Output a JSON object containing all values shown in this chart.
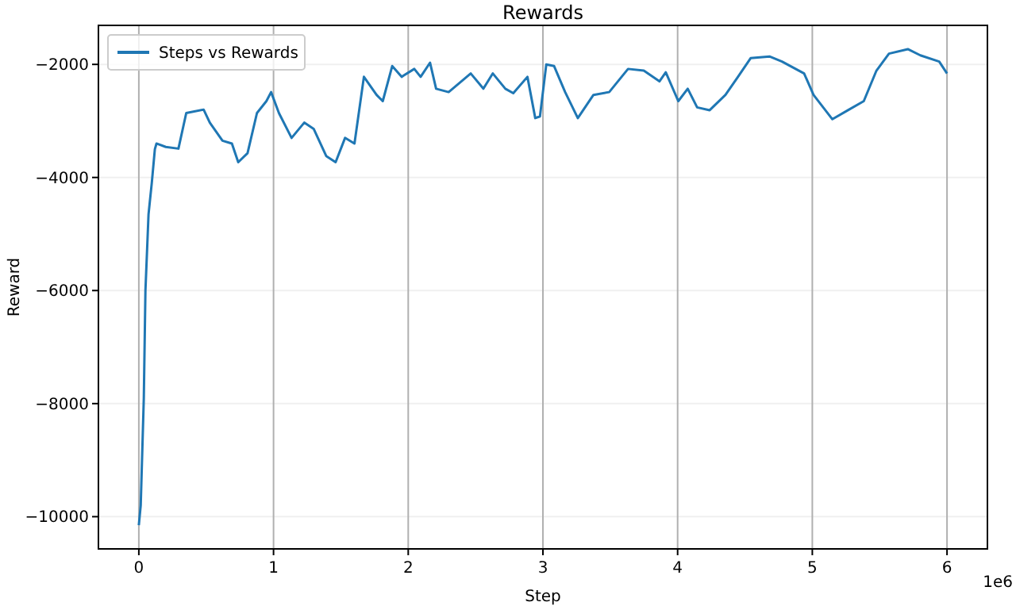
{
  "chart_data": {
    "type": "line",
    "title": "Rewards",
    "xlabel": "Step",
    "ylabel": "Reward",
    "annotations": [
      "1e6"
    ],
    "xlim": [
      -0.3,
      6.3
    ],
    "ylim": [
      -10570,
      -1310
    ],
    "xticks": [
      0,
      1,
      2,
      3,
      4,
      5,
      6
    ],
    "yticks": [
      {
        "value": -10000,
        "label": "−10000"
      },
      {
        "value": -8000,
        "label": "−8000"
      },
      {
        "value": -6000,
        "label": "−6000"
      },
      {
        "value": -4000,
        "label": "−4000"
      },
      {
        "value": -2000,
        "label": "−2000"
      }
    ],
    "grid": true,
    "legend": "top left",
    "marker": "none",
    "line_style": "solid",
    "series": [
      {
        "name": "Steps vs Rewards",
        "color": "#1f77b4",
        "x": [
          0,
          0.014,
          0.037,
          0.049,
          0.072,
          0.096,
          0.119,
          0.131,
          0.2,
          0.294,
          0.352,
          0.481,
          0.527,
          0.621,
          0.691,
          0.738,
          0.807,
          0.877,
          0.947,
          0.982,
          1.04,
          1.134,
          1.228,
          1.298,
          1.391,
          1.461,
          1.531,
          1.601,
          1.671,
          1.765,
          1.811,
          1.881,
          1.951,
          2.045,
          2.092,
          2.162,
          2.207,
          2.3,
          2.464,
          2.558,
          2.628,
          2.721,
          2.78,
          2.885,
          2.943,
          2.978,
          3.025,
          3.083,
          3.165,
          3.259,
          3.375,
          3.492,
          3.632,
          3.749,
          3.865,
          3.912,
          4.005,
          4.075,
          4.145,
          4.238,
          4.355,
          4.448,
          4.542,
          4.682,
          4.775,
          4.939,
          5.009,
          5.149,
          5.265,
          5.382,
          5.476,
          5.569,
          5.709,
          5.802,
          5.942,
          6.0
        ],
        "values": [
          -10150,
          -9800,
          -7900,
          -6000,
          -4650,
          -4100,
          -3500,
          -3400,
          -3460,
          -3490,
          -2860,
          -2800,
          -3030,
          -3350,
          -3400,
          -3730,
          -3570,
          -2860,
          -2650,
          -2490,
          -2860,
          -3300,
          -3030,
          -3140,
          -3620,
          -3730,
          -3300,
          -3400,
          -2220,
          -2540,
          -2650,
          -2030,
          -2220,
          -2080,
          -2220,
          -1970,
          -2430,
          -2490,
          -2160,
          -2430,
          -2160,
          -2430,
          -2510,
          -2220,
          -2950,
          -2920,
          -2000,
          -2030,
          -2490,
          -2950,
          -2540,
          -2490,
          -2080,
          -2110,
          -2300,
          -2140,
          -2650,
          -2430,
          -2760,
          -2810,
          -2540,
          -2220,
          -1890,
          -1860,
          -1950,
          -2160,
          -2540,
          -2970,
          -2810,
          -2650,
          -2110,
          -1810,
          -1730,
          -1840,
          -1950,
          -2160
        ]
      }
    ]
  }
}
